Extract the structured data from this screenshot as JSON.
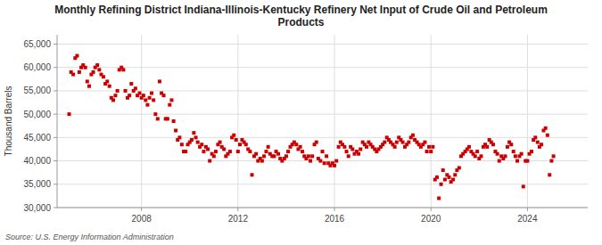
{
  "chart_data": {
    "type": "scatter",
    "title": "Monthly Refining District Indiana-Illinois-Kentucky Refinery Net Input of Crude Oil and Petroleum\nProducts",
    "y_label": "Thousand Barrels",
    "annotations": [
      "Source: U.S. Energy Information Administration"
    ],
    "color": "#cc0000",
    "marker": "square",
    "grid": true,
    "xlim": [
      2004.5,
      2026.5
    ],
    "xticks": [
      2008,
      2012,
      2016,
      2020,
      2024
    ],
    "ylim": [
      30000,
      67000
    ],
    "yticks": [
      {
        "value": 30000,
        "label": "30,000"
      },
      {
        "value": 35000,
        "label": "35,000"
      },
      {
        "value": 40000,
        "label": "40,000"
      },
      {
        "value": 45000,
        "label": "45,000"
      },
      {
        "value": 50000,
        "label": "50,000"
      },
      {
        "value": 55000,
        "label": "55,000"
      },
      {
        "value": 60000,
        "label": "60,000"
      },
      {
        "value": 65000,
        "label": "65,000"
      }
    ],
    "x": [
      2005.0,
      2005.08,
      2005.17,
      2005.25,
      2005.33,
      2005.42,
      2005.5,
      2005.58,
      2005.67,
      2005.75,
      2005.83,
      2005.92,
      2006.0,
      2006.08,
      2006.17,
      2006.25,
      2006.33,
      2006.42,
      2006.5,
      2006.58,
      2006.67,
      2006.75,
      2006.83,
      2006.92,
      2007.0,
      2007.08,
      2007.17,
      2007.25,
      2007.33,
      2007.42,
      2007.5,
      2007.58,
      2007.67,
      2007.75,
      2007.83,
      2007.92,
      2008.0,
      2008.08,
      2008.17,
      2008.25,
      2008.33,
      2008.42,
      2008.5,
      2008.58,
      2008.67,
      2008.75,
      2008.83,
      2008.92,
      2009.0,
      2009.08,
      2009.17,
      2009.25,
      2009.33,
      2009.42,
      2009.5,
      2009.58,
      2009.67,
      2009.75,
      2009.83,
      2009.92,
      2010.0,
      2010.08,
      2010.17,
      2010.25,
      2010.33,
      2010.42,
      2010.5,
      2010.58,
      2010.67,
      2010.75,
      2010.83,
      2010.92,
      2011.0,
      2011.08,
      2011.17,
      2011.25,
      2011.33,
      2011.42,
      2011.5,
      2011.58,
      2011.67,
      2011.75,
      2011.83,
      2011.92,
      2012.0,
      2012.08,
      2012.17,
      2012.25,
      2012.33,
      2012.42,
      2012.5,
      2012.58,
      2012.67,
      2012.75,
      2012.83,
      2012.92,
      2013.0,
      2013.08,
      2013.17,
      2013.25,
      2013.33,
      2013.42,
      2013.5,
      2013.58,
      2013.67,
      2013.75,
      2013.83,
      2013.92,
      2014.0,
      2014.08,
      2014.17,
      2014.25,
      2014.33,
      2014.42,
      2014.5,
      2014.58,
      2014.67,
      2014.75,
      2014.83,
      2014.92,
      2015.0,
      2015.08,
      2015.17,
      2015.25,
      2015.33,
      2015.42,
      2015.5,
      2015.58,
      2015.67,
      2015.75,
      2015.83,
      2015.92,
      2016.0,
      2016.08,
      2016.17,
      2016.25,
      2016.33,
      2016.42,
      2016.5,
      2016.58,
      2016.67,
      2016.75,
      2016.83,
      2016.92,
      2017.0,
      2017.08,
      2017.17,
      2017.25,
      2017.33,
      2017.42,
      2017.5,
      2017.58,
      2017.67,
      2017.75,
      2017.83,
      2017.92,
      2018.0,
      2018.08,
      2018.17,
      2018.25,
      2018.33,
      2018.42,
      2018.5,
      2018.58,
      2018.67,
      2018.75,
      2018.83,
      2018.92,
      2019.0,
      2019.08,
      2019.17,
      2019.25,
      2019.33,
      2019.42,
      2019.5,
      2019.58,
      2019.67,
      2019.75,
      2019.83,
      2019.92,
      2020.0,
      2020.08,
      2020.17,
      2020.25,
      2020.33,
      2020.42,
      2020.5,
      2020.58,
      2020.67,
      2020.75,
      2020.83,
      2020.92,
      2021.0,
      2021.08,
      2021.17,
      2021.25,
      2021.33,
      2021.42,
      2021.5,
      2021.58,
      2021.67,
      2021.75,
      2021.83,
      2021.92,
      2022.0,
      2022.08,
      2022.17,
      2022.25,
      2022.33,
      2022.42,
      2022.5,
      2022.58,
      2022.67,
      2022.75,
      2022.83,
      2022.92,
      2023.0,
      2023.08,
      2023.17,
      2023.25,
      2023.33,
      2023.42,
      2023.5,
      2023.58,
      2023.67,
      2023.75,
      2023.83,
      2023.92,
      2024.0,
      2024.08,
      2024.17,
      2024.25,
      2024.33,
      2024.42,
      2024.5,
      2024.58,
      2024.67,
      2024.75,
      2024.83,
      2024.92,
      2025.0,
      2025.08
    ],
    "values": [
      50000,
      59000,
      58500,
      62000,
      62500,
      59000,
      60000,
      60500,
      60000,
      57000,
      56000,
      58500,
      59000,
      60000,
      60500,
      59500,
      58500,
      58000,
      56500,
      57000,
      56000,
      53500,
      53000,
      54000,
      55000,
      59500,
      60000,
      59500,
      55000,
      53500,
      54000,
      56500,
      55000,
      55500,
      54000,
      54500,
      53500,
      54000,
      53000,
      52000,
      53500,
      54500,
      53000,
      50000,
      49000,
      57000,
      54500,
      54000,
      49000,
      49000,
      52000,
      53000,
      48500,
      46500,
      44500,
      45000,
      43500,
      42000,
      42000,
      43500,
      44000,
      44500,
      46000,
      45000,
      44000,
      43000,
      43500,
      42000,
      43000,
      42500,
      40000,
      41500,
      41000,
      42000,
      43500,
      44000,
      43000,
      42500,
      41000,
      41500,
      42000,
      45000,
      45500,
      44500,
      42000,
      43500,
      44500,
      44000,
      43500,
      42500,
      42000,
      37000,
      41000,
      41500,
      40000,
      40500,
      40000,
      41000,
      42000,
      43000,
      41500,
      41000,
      41000,
      42000,
      41500,
      40500,
      40000,
      40500,
      41000,
      42000,
      43000,
      43500,
      44000,
      43500,
      42500,
      43000,
      42000,
      41000,
      40500,
      41000,
      40000,
      41000,
      43500,
      44000,
      40500,
      40000,
      42000,
      39500,
      41000,
      39500,
      39000,
      39500,
      39000,
      40000,
      43000,
      44000,
      43500,
      43000,
      42000,
      41000,
      43000,
      42500,
      41500,
      42000,
      41500,
      42500,
      44000,
      43500,
      43000,
      44000,
      43500,
      43000,
      42500,
      42000,
      42500,
      43000,
      43500,
      44000,
      45000,
      44500,
      44000,
      43500,
      43000,
      44000,
      45000,
      44500,
      44000,
      43000,
      43500,
      44000,
      45000,
      45500,
      44500,
      44000,
      43500,
      43000,
      43500,
      44000,
      42000,
      43000,
      42000,
      43000,
      36000,
      36500,
      32000,
      35000,
      38000,
      36000,
      37000,
      36500,
      35500,
      36000,
      37000,
      38000,
      38500,
      41000,
      41500,
      42000,
      42500,
      43000,
      42000,
      41500,
      41000,
      42000,
      40500,
      41000,
      43000,
      43500,
      43000,
      44500,
      44000,
      43500,
      42000,
      41500,
      40000,
      41000,
      40500,
      41000,
      43000,
      44000,
      43500,
      42000,
      41000,
      40000,
      41000,
      41500,
      34500,
      40000,
      40000,
      41500,
      42000,
      44500,
      45000,
      44000,
      43000,
      43500,
      46500,
      47000,
      45500,
      37000,
      40000,
      41000
    ]
  }
}
